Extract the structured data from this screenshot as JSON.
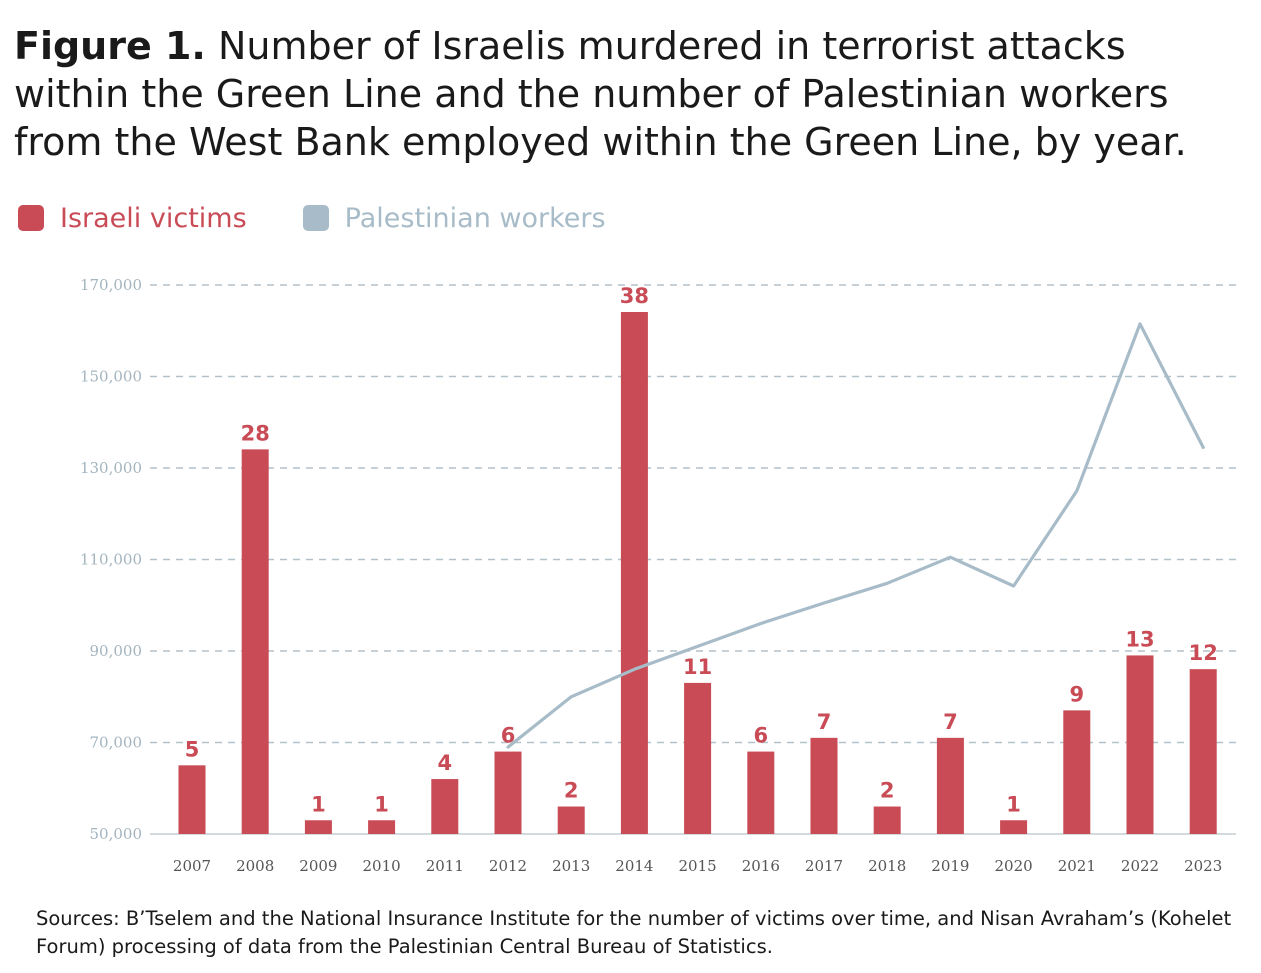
{
  "header": {
    "figure_label": "Figure 1.",
    "title_text": "Number of Israelis murdered in terrorist attacks within the Green Line and the number of Palestinian workers from the West Bank employed within the Green Line, by year."
  },
  "footer": {
    "sources": "Sources: B’Tselem and the National Insurance Institute for the number of victims over time, and Nisan Avraham’s (Kohelet Forum) processing of data from the Palestinian Central Bureau of Statistics."
  },
  "colors": {
    "bar": "#c94b56",
    "line": "#a7bcc8",
    "grid": "#b3c1c9",
    "tick_text": "#a3b4bf",
    "x_tick_text": "#555555",
    "title": "#1a1a1a"
  },
  "chart_data": {
    "type": "bar",
    "categories": [
      "2007",
      "2008",
      "2009",
      "2010",
      "2011",
      "2012",
      "2013",
      "2014",
      "2015",
      "2016",
      "2017",
      "2018",
      "2019",
      "2020",
      "2021",
      "2022",
      "2023"
    ],
    "series": [
      {
        "name": "Israeli victims",
        "type": "bar",
        "values": [
          5,
          28,
          1,
          1,
          4,
          6,
          2,
          38,
          11,
          6,
          7,
          2,
          7,
          1,
          9,
          13,
          12
        ],
        "data_labels": [
          "5",
          "28",
          "1",
          "1",
          "4",
          "6",
          "2",
          "38",
          "11",
          "6",
          "7",
          "2",
          "7",
          "1",
          "9",
          "13",
          "12"
        ]
      },
      {
        "name": "Palestinian workers",
        "type": "line",
        "values": [
          null,
          null,
          null,
          null,
          null,
          69000,
          80000,
          86000,
          91000,
          96000,
          100500,
          104800,
          110500,
          104200,
          125000,
          161500,
          134500
        ]
      }
    ],
    "y_axis": {
      "min": 50000,
      "max": 170000,
      "ticks": [
        50000,
        70000,
        90000,
        110000,
        130000,
        150000,
        170000
      ],
      "tick_labels": [
        "50,000",
        "70,000",
        "90,000",
        "110,000",
        "130,000",
        "150,000",
        "170,000"
      ]
    },
    "grid": true,
    "legend_position": "top-left",
    "legend": [
      "Israeli victims",
      "Palestinian workers"
    ]
  }
}
